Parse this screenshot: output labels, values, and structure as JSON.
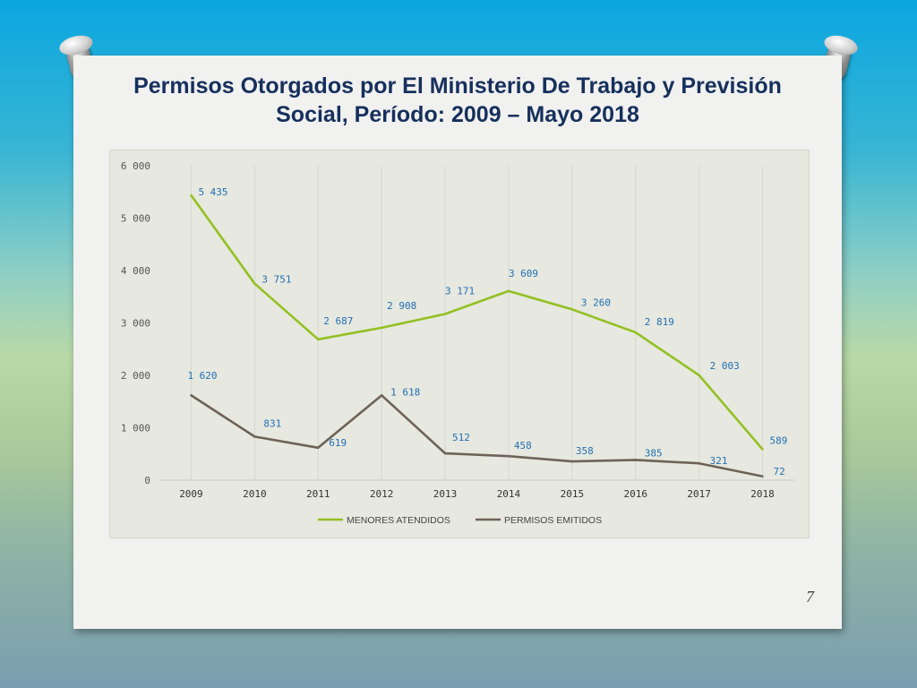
{
  "slide": {
    "title_line1": "Permisos Otorgados  por El Ministerio De Trabajo y Previsión",
    "title_line2": "Social, Período: 2009 – Mayo 2018",
    "page_number": "7"
  },
  "colors": {
    "menores": "#92c022",
    "permisos": "#6e6257",
    "data_label": "#1f6fb5",
    "axis_text": "#555555",
    "grid": "#d6d6d6"
  },
  "chart_data": {
    "type": "line",
    "x": [
      "2009",
      "2010",
      "2011",
      "2012",
      "2013",
      "2014",
      "2015",
      "2016",
      "2017",
      "2018"
    ],
    "ylim": [
      0,
      6000
    ],
    "yticks": [
      0,
      1000,
      2000,
      3000,
      4000,
      5000,
      6000
    ],
    "ytick_labels": [
      "0",
      "1 000",
      "2 000",
      "3 000",
      "4 000",
      "5 000",
      "6 000"
    ],
    "grid": "vertical",
    "legend_position": "bottom",
    "series": [
      {
        "name": "MENORES ATENDIDOS",
        "values": [
          5435,
          3751,
          2687,
          2908,
          3171,
          3609,
          3260,
          2819,
          2003,
          589
        ],
        "labels": [
          "5 435",
          "3 751",
          "2 687",
          "2 908",
          "3 171",
          "3 609",
          "3 260",
          "2 819",
          "2 003",
          "589"
        ]
      },
      {
        "name": "PERMISOS EMITIDOS",
        "values": [
          1620,
          831,
          619,
          1618,
          512,
          458,
          358,
          385,
          321,
          72
        ],
        "labels": [
          "1 620",
          "831",
          "619",
          "1 618",
          "512",
          "458",
          "358",
          "385",
          "321",
          "72"
        ]
      }
    ]
  }
}
